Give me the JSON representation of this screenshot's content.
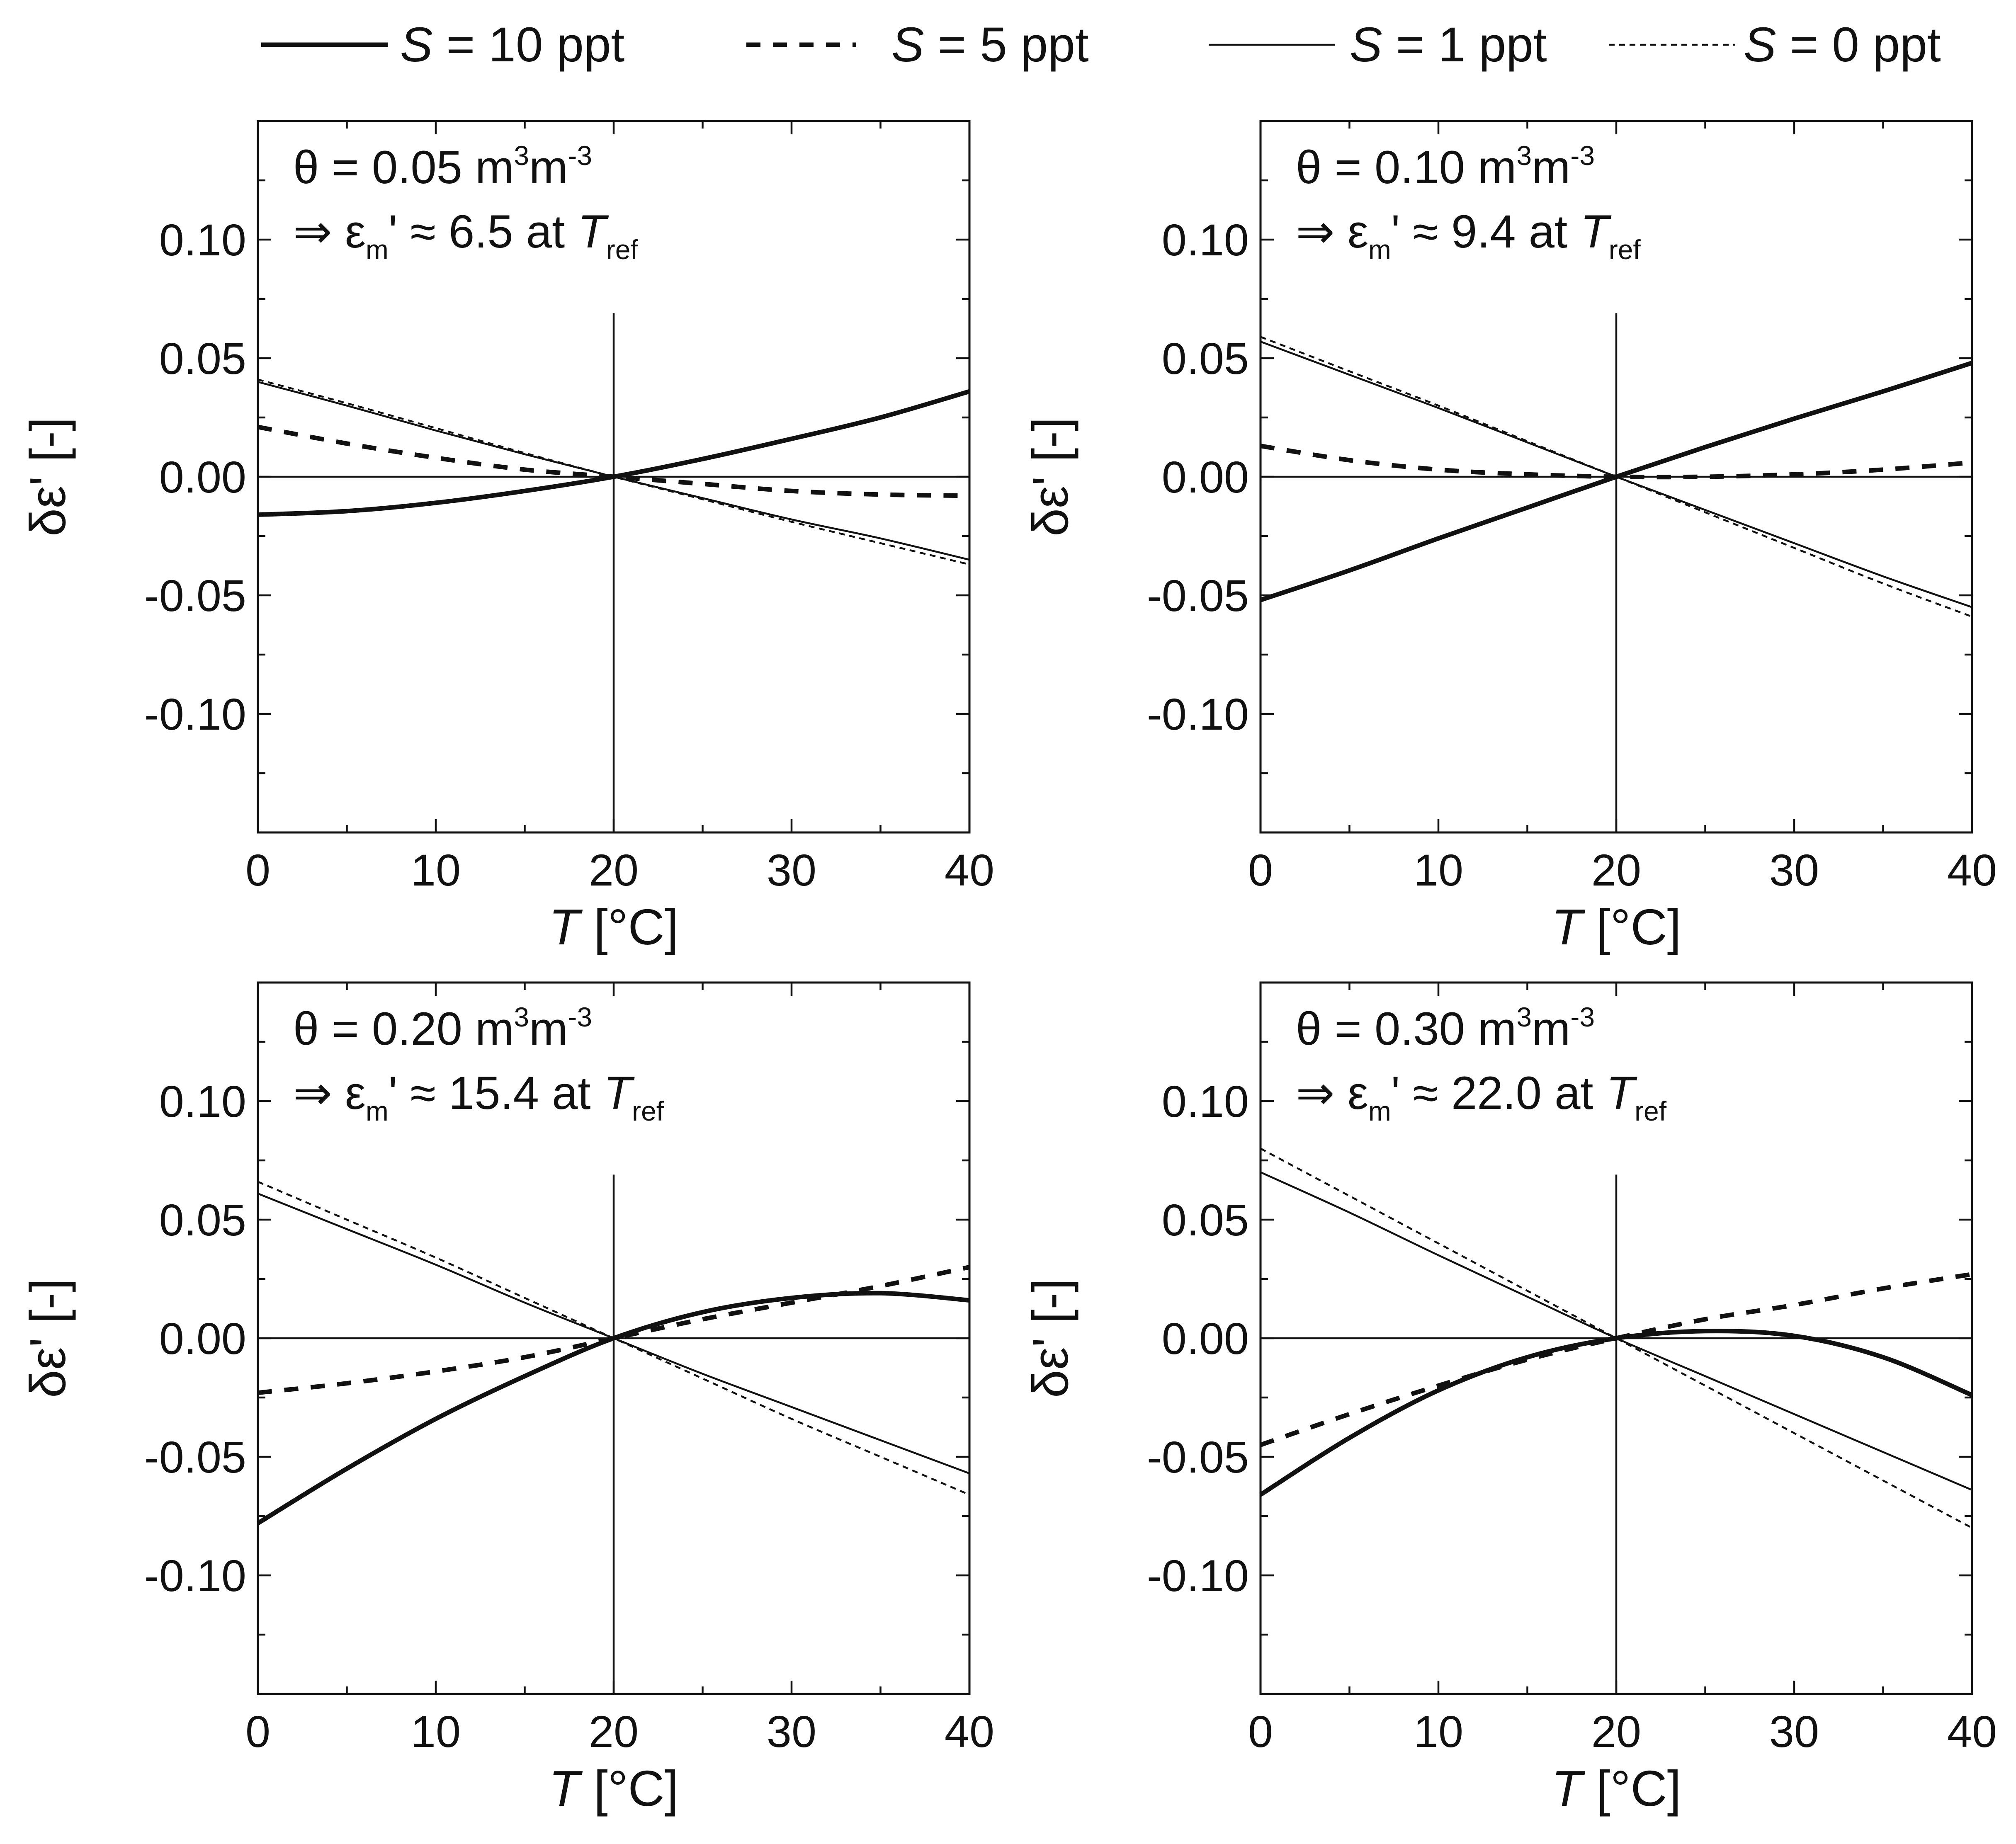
{
  "legend": {
    "entries": [
      {
        "prefix": "S",
        "label": " = 10 ppt",
        "style": "thick-solid"
      },
      {
        "prefix": "S",
        "label": " = 5 ppt",
        "style": "thick-dashed"
      },
      {
        "prefix": "S",
        "label": " = 1 ppt",
        "style": "thin-solid"
      },
      {
        "prefix": "S",
        "label": " = 0 ppt",
        "style": "thin-dotted"
      }
    ]
  },
  "colors": {
    "line": "#111111",
    "background": "#ffffff"
  },
  "chart_data": [
    {
      "type": "line",
      "panel": "top-left",
      "annotation": {
        "theta_sym": "θ",
        "theta_value": " = 0.05 m",
        "theta_exp1": "3",
        "theta_mid": "m",
        "theta_exp2": "-3",
        "arrow": "⇒",
        "eps": "ε",
        "eps_sub": "m",
        "eps_rest": "' ≈ 6.5 at ",
        "t": "T",
        "t_sub": "ref"
      },
      "xlabel": "T [°C]",
      "xlabel_italic": "T",
      "xlabel_rest": " [°C]",
      "ylabel": "δε' [-]",
      "xlim": [
        0,
        40
      ],
      "ylim": [
        -0.15,
        0.15
      ],
      "xticks": [
        "0",
        "10",
        "20",
        "30",
        "40"
      ],
      "yticks": [
        "0.10",
        "0.05",
        "0.00",
        "-0.05",
        "-0.10"
      ],
      "ytick_values": [
        0.1,
        0.05,
        0.0,
        -0.05,
        -0.1
      ],
      "x": [
        0,
        5,
        10,
        15,
        20,
        25,
        30,
        35,
        40
      ],
      "series": [
        {
          "name": "S = 10 ppt",
          "values": [
            -0.016,
            -0.0145,
            -0.011,
            -0.006,
            0.0,
            0.0075,
            0.016,
            0.025,
            0.036
          ]
        },
        {
          "name": "S = 5 ppt",
          "values": [
            0.021,
            0.014,
            0.008,
            0.003,
            0.0,
            -0.003,
            -0.006,
            -0.0075,
            -0.008
          ]
        },
        {
          "name": "S = 1 ppt",
          "values": [
            0.04,
            0.03,
            0.0195,
            0.0095,
            0.0,
            -0.009,
            -0.018,
            -0.026,
            -0.035
          ]
        },
        {
          "name": "S = 0 ppt",
          "values": [
            0.041,
            0.031,
            0.0205,
            0.01,
            0.0,
            -0.0095,
            -0.019,
            -0.028,
            -0.037
          ]
        }
      ]
    },
    {
      "type": "line",
      "panel": "top-right",
      "annotation": {
        "theta_sym": "θ",
        "theta_value": " = 0.10 m",
        "theta_exp1": "3",
        "theta_mid": "m",
        "theta_exp2": "-3",
        "arrow": "⇒",
        "eps": "ε",
        "eps_sub": "m",
        "eps_rest": "' ≈ 9.4  at ",
        "t": "T",
        "t_sub": "ref"
      },
      "xlabel": "T [°C]",
      "xlabel_italic": "T",
      "xlabel_rest": " [°C]",
      "ylabel": "δε' [-]",
      "xlim": [
        0,
        40
      ],
      "ylim": [
        -0.15,
        0.15
      ],
      "xticks": [
        "0",
        "10",
        "20",
        "30",
        "40"
      ],
      "yticks": [
        "0.10",
        "0.05",
        "0.00",
        "-0.05",
        "-0.10"
      ],
      "ytick_values": [
        0.1,
        0.05,
        0.0,
        -0.05,
        -0.1
      ],
      "x": [
        0,
        5,
        10,
        15,
        20,
        25,
        30,
        35,
        40
      ],
      "series": [
        {
          "name": "S = 10 ppt",
          "values": [
            -0.052,
            -0.0395,
            -0.026,
            -0.013,
            0.0,
            0.0125,
            0.0245,
            0.036,
            0.048
          ]
        },
        {
          "name": "S = 5 ppt",
          "values": [
            0.013,
            0.007,
            0.003,
            0.001,
            0.0,
            0.0,
            0.001,
            0.003,
            0.006
          ]
        },
        {
          "name": "S = 1 ppt",
          "values": [
            0.057,
            0.043,
            0.029,
            0.0145,
            0.0,
            -0.014,
            -0.028,
            -0.042,
            -0.055
          ]
        },
        {
          "name": "S = 0 ppt",
          "values": [
            0.059,
            0.0445,
            0.03,
            0.015,
            0.0,
            -0.015,
            -0.03,
            -0.045,
            -0.059
          ]
        }
      ]
    },
    {
      "type": "line",
      "panel": "bottom-left",
      "annotation": {
        "theta_sym": "θ",
        "theta_value": " = 0.20 m",
        "theta_exp1": "3",
        "theta_mid": "m",
        "theta_exp2": "-3",
        "arrow": "⇒",
        "eps": "ε",
        "eps_sub": "m",
        "eps_rest": "' ≈ 15.4  at ",
        "t": "T",
        "t_sub": "ref"
      },
      "xlabel": "T [°C]",
      "xlabel_italic": "T",
      "xlabel_rest": " [°C]",
      "ylabel": "δε' [-]",
      "xlim": [
        0,
        40
      ],
      "ylim": [
        -0.15,
        0.15
      ],
      "xticks": [
        "0",
        "10",
        "20",
        "30",
        "40"
      ],
      "yticks": [
        "0.10",
        "0.05",
        "0.00",
        "-0.05",
        "-0.10"
      ],
      "ytick_values": [
        0.1,
        0.05,
        0.0,
        -0.05,
        -0.1
      ],
      "x": [
        0,
        5,
        10,
        15,
        20,
        25,
        30,
        35,
        40
      ],
      "series": [
        {
          "name": "S = 10 ppt",
          "values": [
            -0.078,
            -0.055,
            -0.034,
            -0.016,
            0.0,
            0.011,
            0.017,
            0.019,
            0.016
          ]
        },
        {
          "name": "S = 5 ppt",
          "values": [
            -0.023,
            -0.019,
            -0.014,
            -0.008,
            0.0,
            0.008,
            0.015,
            0.022,
            0.03
          ]
        },
        {
          "name": "S = 1 ppt",
          "values": [
            0.061,
            0.046,
            0.031,
            0.015,
            0.0,
            -0.015,
            -0.029,
            -0.043,
            -0.057
          ]
        },
        {
          "name": "S = 0 ppt",
          "values": [
            0.066,
            0.05,
            0.034,
            0.017,
            0.0,
            -0.017,
            -0.034,
            -0.05,
            -0.066
          ]
        }
      ]
    },
    {
      "type": "line",
      "panel": "bottom-right",
      "annotation": {
        "theta_sym": "θ",
        "theta_value": " = 0.30 m",
        "theta_exp1": "3",
        "theta_mid": "m",
        "theta_exp2": "-3",
        "arrow": "⇒",
        "eps": "ε",
        "eps_sub": "m",
        "eps_rest": "' ≈ 22.0  at ",
        "t": "T",
        "t_sub": "ref"
      },
      "xlabel": "T [°C]",
      "xlabel_italic": "T",
      "xlabel_rest": " [°C]",
      "ylabel": "δε' [-]",
      "xlim": [
        0,
        40
      ],
      "ylim": [
        -0.15,
        0.15
      ],
      "xticks": [
        "0",
        "10",
        "20",
        "30",
        "40"
      ],
      "yticks": [
        "0.10",
        "0.05",
        "0.00",
        "-0.05",
        "-0.10"
      ],
      "ytick_values": [
        0.1,
        0.05,
        0.0,
        -0.05,
        -0.1
      ],
      "x": [
        0,
        5,
        10,
        15,
        20,
        25,
        30,
        35,
        40
      ],
      "series": [
        {
          "name": "S = 10 ppt",
          "values": [
            -0.066,
            -0.042,
            -0.022,
            -0.008,
            0.0,
            0.003,
            0.001,
            -0.008,
            -0.024
          ]
        },
        {
          "name": "S = 5 ppt",
          "values": [
            -0.045,
            -0.032,
            -0.02,
            -0.009,
            0.0,
            0.008,
            0.014,
            0.021,
            0.027
          ]
        },
        {
          "name": "S = 1 ppt",
          "values": [
            0.07,
            0.053,
            0.035,
            0.0175,
            0.0,
            -0.016,
            -0.032,
            -0.048,
            -0.064
          ]
        },
        {
          "name": "S = 0 ppt",
          "values": [
            0.08,
            0.06,
            0.04,
            0.02,
            0.0,
            -0.02,
            -0.04,
            -0.06,
            -0.08
          ]
        }
      ]
    }
  ]
}
